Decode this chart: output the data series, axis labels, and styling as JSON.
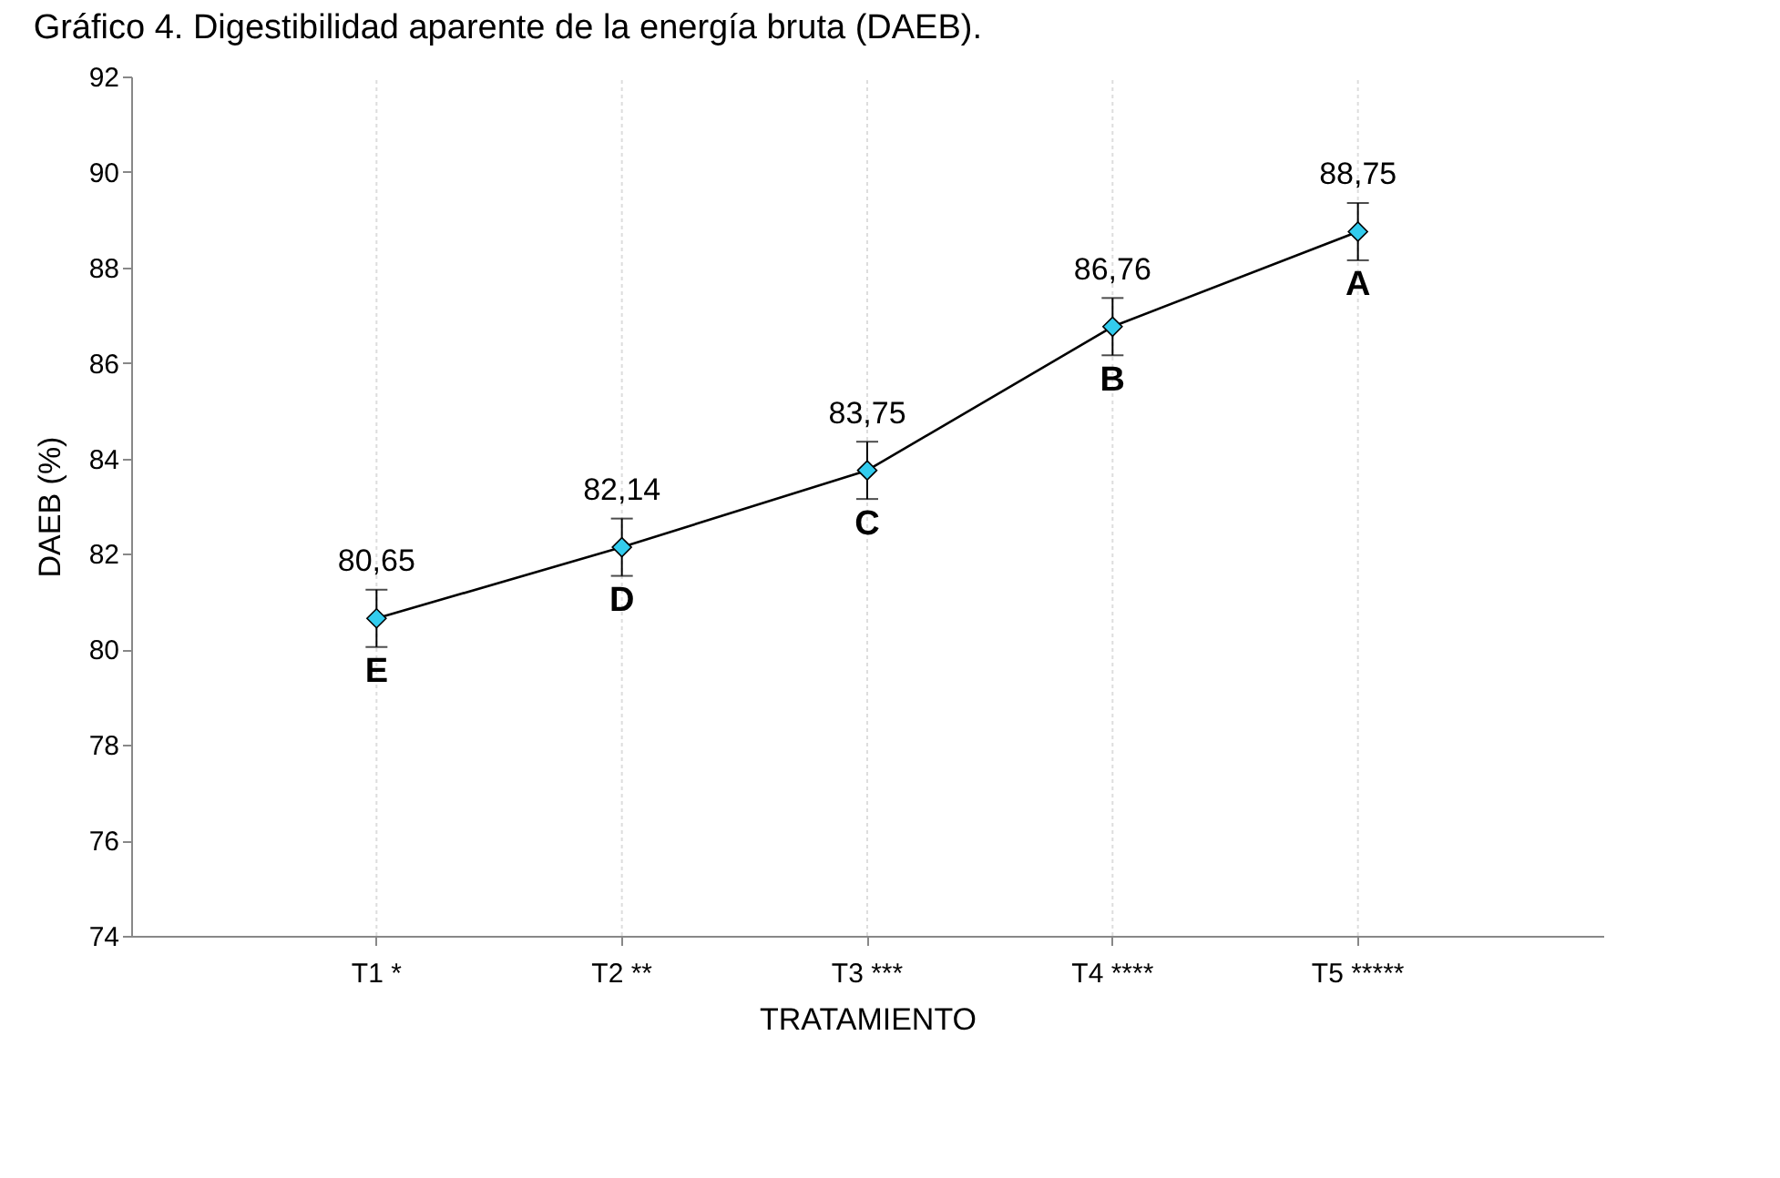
{
  "chart_data": {
    "type": "line",
    "title": "Gráfico 4. Digestibilidad aparente de la energía bruta (DAEB).",
    "xlabel": "TRATAMIENTO",
    "ylabel": "DAEB (%)",
    "categories": [
      "T1 *",
      "T2 **",
      "T3 ***",
      "T4 ****",
      "T5 *****"
    ],
    "series": [
      {
        "color": "#33ccee",
        "values": [
          80.65,
          82.14,
          83.75,
          86.76,
          88.75
        ],
        "errors": [
          0.6,
          0.6,
          0.6,
          0.6,
          0.6
        ],
        "value_labels": [
          "80,65",
          "82,14",
          "83,75",
          "86,76",
          "88,75"
        ]
      }
    ],
    "annotations": [
      {
        "text": "E",
        "x": "T1 *",
        "y": 80.65
      },
      {
        "text": "D",
        "x": "T2 **",
        "y": 82.14
      },
      {
        "text": "C",
        "x": "T3 ***",
        "y": 83.75
      },
      {
        "text": "B",
        "x": "T4 ****",
        "y": 86.76
      },
      {
        "text": "A",
        "x": "T5 *****",
        "y": 88.75
      }
    ],
    "ylim": [
      74,
      92
    ],
    "yticks": [
      74,
      76,
      78,
      80,
      82,
      84,
      86,
      88,
      90,
      92
    ],
    "grid": "x",
    "marker": "diamond",
    "line_style": "solid"
  }
}
